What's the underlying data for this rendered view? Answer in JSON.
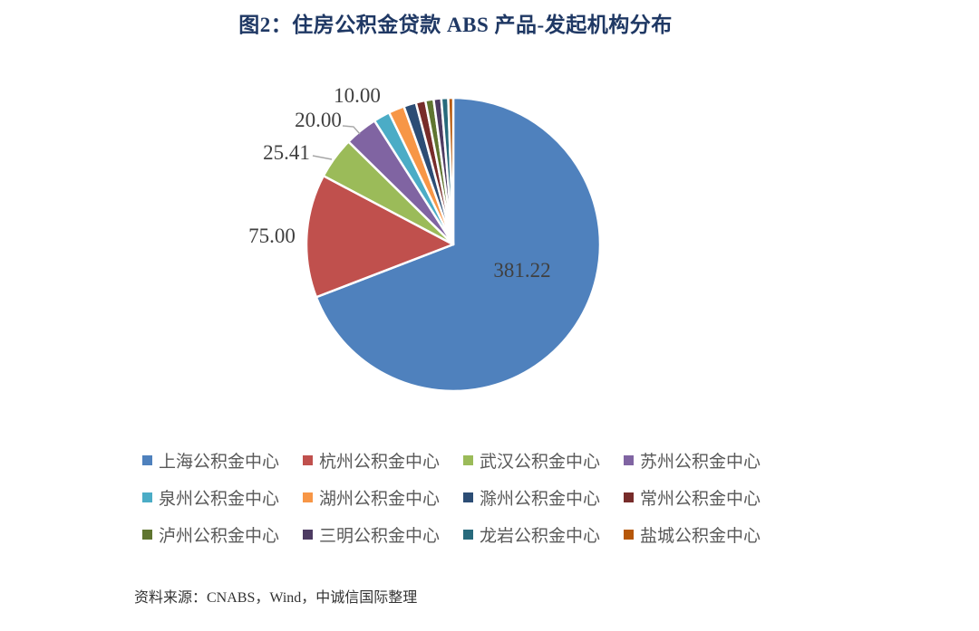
{
  "title": "图2：住房公积金贷款 ABS 产品-发起机构分布",
  "source_note": "资料来源：CNABS，Wind，中诚信国际整理",
  "styles": {
    "title_color": "#1F3864",
    "data_label_color": "#404040",
    "legend_text_color": "#595959",
    "leader_line_color": "#A6A6A6",
    "slice_border_color": "#FFFFFF"
  },
  "chart_data": {
    "type": "pie",
    "title": "图2：住房公积金贷款 ABS 产品-发起机构分布",
    "legend_position": "bottom",
    "start_angle_deg": 0,
    "direction": "clockwise",
    "slices": [
      {
        "name": "上海公积金中心",
        "value": 381.22,
        "data_label": "381.22",
        "color": "#4F81BD"
      },
      {
        "name": "杭州公积金中心",
        "value": 75.0,
        "data_label": "75.00",
        "color": "#C0504D"
      },
      {
        "name": "武汉公积金中心",
        "value": 25.41,
        "data_label": "25.41",
        "color": "#9BBB59"
      },
      {
        "name": "苏州公积金中心",
        "value": 20.0,
        "data_label": "20.00",
        "color": "#8064A2"
      },
      {
        "name": "泉州公积金中心",
        "value": 10.0,
        "data_label": "10.00",
        "color": "#4BACC6"
      },
      {
        "name": "湖州公积金中心",
        "value": 9.6,
        "data_label": "",
        "color": "#F79646"
      },
      {
        "name": "滁州公积金中心",
        "value": 7.5,
        "data_label": "",
        "color": "#2C4D75"
      },
      {
        "name": "常州公积金中心",
        "value": 5.8,
        "data_label": "",
        "color": "#772C2A"
      },
      {
        "name": "泸州公积金中心",
        "value": 5.0,
        "data_label": "",
        "color": "#5F7530"
      },
      {
        "name": "三明公积金中心",
        "value": 4.6,
        "data_label": "",
        "color": "#4D3B62"
      },
      {
        "name": "龙岩公积金中心",
        "value": 4.2,
        "data_label": "",
        "color": "#276A7C"
      },
      {
        "name": "盐城公积金中心",
        "value": 3.0,
        "data_label": "",
        "color": "#B65708"
      }
    ]
  }
}
